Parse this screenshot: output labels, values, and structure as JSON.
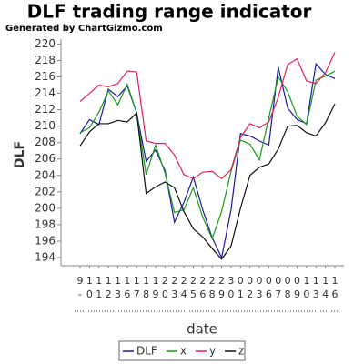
{
  "chart_data": {
    "type": "line",
    "title": "DLF trading range indicator",
    "subtitle": "Generated by ChartGizmo.com",
    "x_label": "date",
    "y_label": "DLF",
    "categories": [
      "9-",
      "10",
      "11",
      "12",
      "13",
      "16",
      "17",
      "18",
      "19",
      "20",
      "23",
      "24",
      "25",
      "26",
      "28",
      "29",
      "30",
      "01",
      "02",
      "03",
      "06",
      "07",
      "08",
      "09",
      "10",
      "13",
      "14",
      "16"
    ],
    "series": [
      {
        "name": "DLF",
        "color": "#1a1aa0",
        "values": [
          209.1,
          210.8,
          210.2,
          214.5,
          213.6,
          214.9,
          211.6,
          205.7,
          207.1,
          204.6,
          198.3,
          200.7,
          203.8,
          199.8,
          196.4,
          194.0,
          199.8,
          209.1,
          208.8,
          208.2,
          207.7,
          217.2,
          212.2,
          210.8,
          210.3,
          217.6,
          216.3,
          215.8
        ]
      },
      {
        "name": "x",
        "color": "#1a9a1a",
        "values": [
          209.2,
          209.8,
          211.7,
          214.3,
          212.6,
          215.1,
          211.6,
          204.1,
          207.7,
          204.3,
          199.5,
          199.8,
          202.5,
          198.9,
          196.3,
          199.6,
          204.5,
          208.3,
          207.8,
          205.9,
          211.0,
          216.0,
          214.2,
          211.2,
          210.2,
          215.6,
          216.1,
          216.7
        ]
      },
      {
        "name": "y",
        "color": "#e0205a",
        "values": [
          213.0,
          214.0,
          215.0,
          214.8,
          215.2,
          216.7,
          216.6,
          208.2,
          207.9,
          207.9,
          206.5,
          204.1,
          203.6,
          204.4,
          204.5,
          203.6,
          204.7,
          208.6,
          210.3,
          209.8,
          210.5,
          213.5,
          217.5,
          218.2,
          215.5,
          215.2,
          216.5,
          219.0
        ]
      },
      {
        "name": "z",
        "color": "#111111",
        "values": [
          207.6,
          209.3,
          210.3,
          210.3,
          210.7,
          210.5,
          211.6,
          201.8,
          202.6,
          203.2,
          202.5,
          199.6,
          197.5,
          196.5,
          195.1,
          193.8,
          195.4,
          200.0,
          204.0,
          205.0,
          205.4,
          207.2,
          210.0,
          210.1,
          209.2,
          208.8,
          210.4,
          212.7
        ]
      }
    ],
    "ylim": [
      193,
      220.6
    ],
    "yticks": [
      194,
      196,
      198,
      200,
      202,
      204,
      206,
      208,
      210,
      212,
      214,
      216,
      218,
      220
    ],
    "legend": "bottom"
  }
}
